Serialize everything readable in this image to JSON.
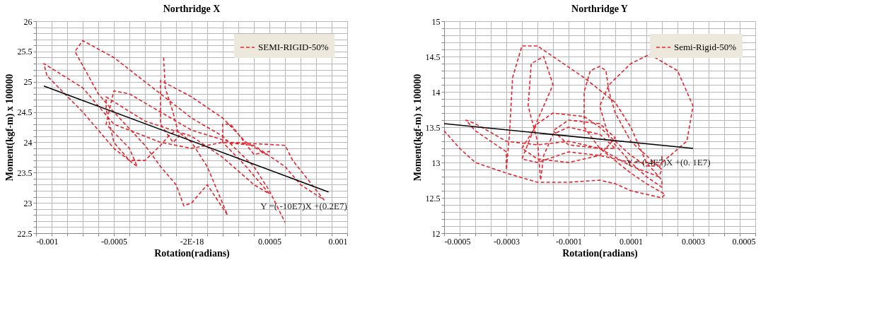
{
  "chart_data": [
    {
      "type": "line",
      "title": "Northridge X",
      "xlabel": "Rotation(radians)",
      "ylabel": "Moment(kgf-m)  x 100000",
      "xlim": [
        -0.001,
        0.001
      ],
      "ylim": [
        22.5,
        26
      ],
      "xticks": [
        -0.001,
        {
          "value": -0.0009,
          "label": null
        },
        {
          "value": -0.0008,
          "label": null
        },
        {
          "value": -0.0007,
          "label": null
        },
        {
          "value": -0.0006,
          "label": null
        },
        -0.0005,
        {
          "value": -0.0004,
          "label": null
        },
        {
          "value": -0.0003,
          "label": null
        },
        {
          "value": -0.0002,
          "label": null
        },
        {
          "value": -0.0001,
          "label": null
        },
        {
          "value": -2e-18,
          "label": "-2E-18"
        },
        {
          "value": 0.0001,
          "label": null
        },
        {
          "value": 0.0002,
          "label": null
        },
        {
          "value": 0.0003,
          "label": null
        },
        {
          "value": 0.0004,
          "label": null
        },
        0.0005,
        {
          "value": 0.0006,
          "label": null
        },
        {
          "value": 0.0007,
          "label": null
        },
        {
          "value": 0.0008,
          "label": null
        },
        {
          "value": 0.0009,
          "label": null
        },
        0.001
      ],
      "yticks": [
        22.5,
        {
          "value": 22.6,
          "label": null
        },
        {
          "value": 22.7,
          "label": null
        },
        {
          "value": 22.8,
          "label": null
        },
        {
          "value": 22.9,
          "label": null
        },
        23,
        {
          "value": 23.1,
          "label": null
        },
        {
          "value": 23.2,
          "label": null
        },
        {
          "value": 23.3,
          "label": null
        },
        {
          "value": 23.4,
          "label": null
        },
        23.5,
        {
          "value": 23.6,
          "label": null
        },
        {
          "value": 23.7,
          "label": null
        },
        {
          "value": 23.8,
          "label": null
        },
        {
          "value": 23.9,
          "label": null
        },
        24,
        {
          "value": 24.1,
          "label": null
        },
        {
          "value": 24.2,
          "label": null
        },
        {
          "value": 24.3,
          "label": null
        },
        {
          "value": 24.4,
          "label": null
        },
        24.5,
        {
          "value": 24.6,
          "label": null
        },
        {
          "value": 24.7,
          "label": null
        },
        {
          "value": 24.8,
          "label": null
        },
        {
          "value": 24.9,
          "label": null
        },
        25,
        {
          "value": 25.1,
          "label": null
        },
        {
          "value": 25.2,
          "label": null
        },
        {
          "value": 25.3,
          "label": null
        },
        {
          "value": 25.4,
          "label": null
        },
        25.5,
        {
          "value": 25.6,
          "label": null
        },
        {
          "value": 25.7,
          "label": null
        },
        {
          "value": 25.8,
          "label": null
        },
        {
          "value": 25.9,
          "label": null
        },
        26
      ],
      "grid": true,
      "legend": "top right",
      "series": [
        {
          "name": "SEMI-RIGID-50%",
          "color": "#e8232b",
          "line_style": "dashed",
          "x": [
            -0.00018,
            -0.00017,
            -0.00012,
            -8e-05,
            -0.00012,
            -0.0002,
            -0.0002,
            0.0,
            0.0002,
            0.00035,
            0.00048,
            0.0005,
            0.0004,
            0.00025,
            0.0002,
            0.0002,
            0.00035,
            0.0005,
            0.0004,
            0.0002,
            0.0,
            -0.0003,
            -0.00055,
            -0.00055,
            -0.0005,
            -0.0004,
            -0.00035,
            -0.0004,
            -0.00055,
            -0.0005,
            -0.0004,
            -0.0002,
            0.0,
            0.00025,
            0.0006,
            0.00065,
            0.00085,
            0.0007,
            0.0006,
            0.0004,
            0.0002,
            0.0,
            -0.0002,
            -0.0005,
            -0.0007,
            -0.00095,
            -0.00093,
            -0.0007,
            -0.0005,
            -0.0004,
            -0.0003,
            -0.0002,
            -0.00015,
            -0.0001,
            0.0,
            0.0001,
            0.00023,
            0.0001,
            0.0,
            -5e-05,
            -0.0001,
            -0.0002,
            -0.0003,
            -0.0005,
            -0.0006,
            -0.00075,
            -0.0007,
            -0.0005,
            -0.0002,
            0.0,
            0.0002,
            0.0004,
            0.0005,
            0.0006
          ],
          "values": [
            25.4,
            24.9,
            24.5,
            24.1,
            24.0,
            24.3,
            25.02,
            24.75,
            24.4,
            24.0,
            23.8,
            23.85,
            23.8,
            24.3,
            24.3,
            24.0,
            23.6,
            23.15,
            23.3,
            23.75,
            24.1,
            24.35,
            24.75,
            24.55,
            24.0,
            23.7,
            23.6,
            23.9,
            24.3,
            24.85,
            24.8,
            24.5,
            24.2,
            24.0,
            23.95,
            23.7,
            23.05,
            23.3,
            23.6,
            23.95,
            24.0,
            23.9,
            24.0,
            24.3,
            24.9,
            25.3,
            25.1,
            24.5,
            23.9,
            23.7,
            23.7,
            23.95,
            24.1,
            24.2,
            24.0,
            23.6,
            22.8,
            23.3,
            23.0,
            22.95,
            23.3,
            23.6,
            23.95,
            24.5,
            24.8,
            25.5,
            25.68,
            25.4,
            24.8,
            24.4,
            24.1,
            23.6,
            23.2,
            22.68
          ]
        },
        {
          "type": "line",
          "color": "#000000",
          "line_style": "solid",
          "x": [
            -0.00095,
            0.00088
          ],
          "values": [
            24.93,
            23.18
          ]
        }
      ],
      "annotations": [
        "Y =( -10E7)X +(0.2E7)"
      ]
    },
    {
      "type": "line",
      "title": "Northridge Y",
      "xlabel": "Rotation(radians)",
      "ylabel": "Moment(kgf-m)  x 100000",
      "xlim": [
        -0.0005,
        0.0005
      ],
      "ylim": [
        12,
        15
      ],
      "xticks": [
        -0.0005,
        {
          "value": -0.00045,
          "label": null
        },
        {
          "value": -0.0004,
          "label": null
        },
        {
          "value": -0.00035,
          "label": null
        },
        -0.0003,
        {
          "value": -0.00025,
          "label": null
        },
        {
          "value": -0.0002,
          "label": null
        },
        {
          "value": -0.00015,
          "label": null
        },
        -0.0001,
        {
          "value": -5e-05,
          "label": null
        },
        {
          "value": 0,
          "label": null
        },
        {
          "value": 5e-05,
          "label": null
        },
        0.0001,
        {
          "value": 0.00015,
          "label": null
        },
        {
          "value": 0.0002,
          "label": null
        },
        {
          "value": 0.00025,
          "label": null
        },
        0.0003,
        {
          "value": 0.00035,
          "label": null
        },
        {
          "value": 0.0004,
          "label": null
        },
        {
          "value": 0.00045,
          "label": null
        },
        0.0005
      ],
      "yticks": [
        12,
        {
          "value": 12.1,
          "label": null
        },
        {
          "value": 12.2,
          "label": null
        },
        {
          "value": 12.3,
          "label": null
        },
        {
          "value": 12.4,
          "label": null
        },
        12.5,
        {
          "value": 12.6,
          "label": null
        },
        {
          "value": 12.7,
          "label": null
        },
        {
          "value": 12.8,
          "label": null
        },
        {
          "value": 12.9,
          "label": null
        },
        13,
        {
          "value": 13.1,
          "label": null
        },
        {
          "value": 13.2,
          "label": null
        },
        {
          "value": 13.3,
          "label": null
        },
        {
          "value": 13.4,
          "label": null
        },
        13.5,
        {
          "value": 13.6,
          "label": null
        },
        {
          "value": 13.7,
          "label": null
        },
        {
          "value": 13.8,
          "label": null
        },
        {
          "value": 13.9,
          "label": null
        },
        14,
        {
          "value": 14.1,
          "label": null
        },
        {
          "value": 14.2,
          "label": null
        },
        {
          "value": 14.3,
          "label": null
        },
        {
          "value": 14.4,
          "label": null
        },
        14.5,
        {
          "value": 14.6,
          "label": null
        },
        {
          "value": 14.7,
          "label": null
        },
        {
          "value": 14.8,
          "label": null
        },
        {
          "value": 14.9,
          "label": null
        },
        15
      ],
      "grid": true,
      "legend": "top right",
      "series": [
        {
          "name": "Semi-Rigid-50%",
          "color": "#e8232b",
          "line_style": "dashed",
          "x": [
            -0.0005,
            -0.00045,
            -0.0004,
            -0.0003,
            -0.0002,
            -0.0001,
            0.0,
            5e-05,
            0.0001,
            0.00015,
            0.0002,
            0.00021,
            0.00015,
            0.0001,
            0.0,
            -5e-05,
            -5e-05,
            -3e-05,
            0.0,
            2e-05,
            3e-05,
            5e-05,
            0.0001,
            0.0002,
            0.00019,
            0.0001,
            0.0,
            -0.0001,
            -0.0002,
            -0.0003,
            -0.0004,
            -0.00043,
            -0.0004,
            -0.0003,
            -0.0003,
            -0.00029,
            -0.00028,
            -0.00025,
            -0.0002,
            -0.00015,
            -5e-05,
            5e-05,
            0.0001,
            0.00015,
            0.0002,
            0.0002,
            0.00015,
            0.0001,
            3e-05,
            0.0,
            3e-05,
            0.0001,
            0.00016,
            0.00025,
            0.0003,
            0.00028,
            0.0002,
            0.0001,
            0.0,
            -0.0001,
            -0.0002,
            -0.00025,
            -0.0002,
            -0.00015,
            -0.00018,
            -0.00022,
            -0.00023,
            -0.0002,
            -0.00019,
            -0.00018,
            -0.00015,
            -0.0001,
            0.0,
            5e-05,
            0.0,
            -0.0001,
            -0.00015,
            -0.0001,
            0.0,
            5e-05,
            0.0,
            -0.0001,
            -0.0002,
            -0.00025,
            -0.0002,
            -0.00015,
            -5e-05,
            0.0,
            0.0001,
            0.00015,
            0.0002,
            0.0002
          ],
          "values": [
            13.45,
            13.2,
            13.0,
            12.85,
            12.72,
            12.72,
            12.75,
            12.7,
            12.6,
            12.55,
            12.5,
            12.55,
            12.7,
            12.85,
            13.2,
            13.5,
            14.0,
            14.3,
            14.36,
            14.3,
            14.0,
            13.7,
            13.3,
            12.9,
            12.8,
            12.95,
            13.2,
            13.3,
            13.25,
            13.3,
            13.55,
            13.6,
            13.45,
            13.15,
            12.9,
            13.4,
            14.2,
            14.65,
            14.65,
            14.5,
            14.2,
            13.85,
            13.5,
            13.0,
            12.75,
            12.65,
            12.8,
            13.0,
            13.35,
            13.8,
            14.1,
            14.4,
            14.53,
            14.3,
            13.8,
            13.3,
            13.0,
            13.0,
            13.1,
            13.15,
            13.0,
            13.05,
            13.6,
            14.1,
            14.5,
            14.4,
            13.8,
            13.3,
            12.75,
            13.1,
            13.4,
            13.5,
            13.4,
            13.2,
            13.2,
            13.25,
            13.45,
            13.6,
            13.55,
            13.35,
            13.1,
            13.0,
            13.05,
            13.2,
            13.55,
            13.7,
            13.65,
            13.5,
            13.1,
            12.95,
            12.95,
            13.1
          ]
        },
        {
          "type": "line",
          "color": "#000000",
          "line_style": "solid",
          "x": [
            -0.0005,
            0.0003
          ],
          "values": [
            13.55,
            13.2
          ]
        }
      ],
      "annotations": [
        "Y = (-4E7)X +(0. 1E7)"
      ]
    }
  ]
}
